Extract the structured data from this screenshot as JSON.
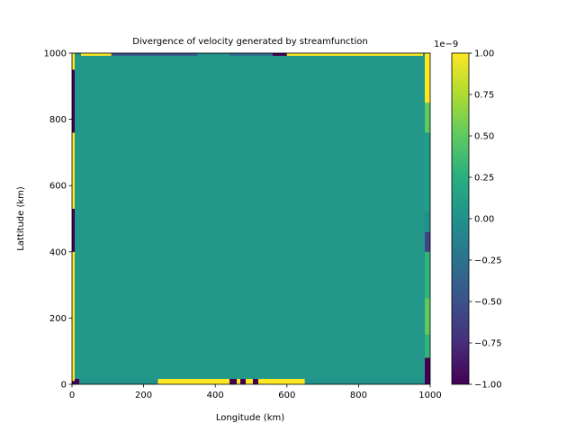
{
  "chart_data": {
    "type": "heatmap",
    "title": "Divergence of velocity generated by streamfunction",
    "xlabel": "Longitude (km)",
    "ylabel": "Lattitude (km)",
    "xlim": [
      0,
      1000
    ],
    "ylim": [
      0,
      1000
    ],
    "x_ticks": [
      "0",
      "200",
      "400",
      "600",
      "800",
      "1000"
    ],
    "y_ticks": [
      "0",
      "200",
      "400",
      "600",
      "800",
      "1000"
    ],
    "x_tick_values": [
      0,
      200,
      400,
      600,
      800,
      1000
    ],
    "y_tick_values": [
      0,
      200,
      400,
      600,
      800,
      1000
    ],
    "interior_value": 0.05,
    "colormap": "viridis",
    "colorbar": {
      "range": [
        -1.0,
        1.0
      ],
      "offset_label": "1e−9",
      "ticks": [
        "−1.00",
        "−0.75",
        "−0.50",
        "−0.25",
        "0.00",
        "0.25",
        "0.50",
        "0.75",
        "1.00"
      ],
      "tick_values": [
        -1.0,
        -0.75,
        -0.5,
        -0.25,
        0.0,
        0.25,
        0.5,
        0.75,
        1.0
      ]
    },
    "boundary": {
      "bottom": [
        {
          "x": [
            0,
            20
          ],
          "value": -1.0
        },
        {
          "x": [
            20,
            240
          ],
          "value": 0.0
        },
        {
          "x": [
            240,
            440
          ],
          "value": 1.0
        },
        {
          "x": [
            440,
            460
          ],
          "value": -1.0
        },
        {
          "x": [
            460,
            470
          ],
          "value": 1.0
        },
        {
          "x": [
            470,
            485
          ],
          "value": -1.0
        },
        {
          "x": [
            485,
            505
          ],
          "value": 1.0
        },
        {
          "x": [
            505,
            520
          ],
          "value": -1.0
        },
        {
          "x": [
            520,
            650
          ],
          "value": 1.0
        },
        {
          "x": [
            650,
            985
          ],
          "value": 0.0
        },
        {
          "x": [
            985,
            1000
          ],
          "value": -1.0
        }
      ],
      "top": [
        {
          "x": [
            0,
            25
          ],
          "value": 0.0
        },
        {
          "x": [
            25,
            110
          ],
          "value": 1.0
        },
        {
          "x": [
            110,
            350
          ],
          "value": -0.5
        },
        {
          "x": [
            350,
            440
          ],
          "value": 0.0
        },
        {
          "x": [
            440,
            560
          ],
          "value": -0.3
        },
        {
          "x": [
            560,
            600
          ],
          "value": -1.0
        },
        {
          "x": [
            600,
            980
          ],
          "value": 1.0
        },
        {
          "x": [
            980,
            1000
          ],
          "value": 0.0
        }
      ],
      "left": [
        {
          "y": [
            0,
            10
          ],
          "value": -1.0
        },
        {
          "y": [
            10,
            400
          ],
          "value": 1.0
        },
        {
          "y": [
            400,
            530
          ],
          "value": -1.0
        },
        {
          "y": [
            530,
            760
          ],
          "value": 1.0
        },
        {
          "y": [
            760,
            950
          ],
          "value": -1.0
        },
        {
          "y": [
            950,
            1000
          ],
          "value": 1.0
        }
      ],
      "right": [
        {
          "y": [
            0,
            80
          ],
          "value": -1.0
        },
        {
          "y": [
            80,
            150
          ],
          "value": 0.3
        },
        {
          "y": [
            150,
            260
          ],
          "value": 0.5
        },
        {
          "y": [
            260,
            400
          ],
          "value": 0.3
        },
        {
          "y": [
            400,
            460
          ],
          "value": -0.6
        },
        {
          "y": [
            460,
            520
          ],
          "value": 0.0
        },
        {
          "y": [
            520,
            760
          ],
          "value": 0.1
        },
        {
          "y": [
            760,
            850
          ],
          "value": 0.5
        },
        {
          "y": [
            850,
            1000
          ],
          "value": 1.0
        }
      ]
    }
  }
}
